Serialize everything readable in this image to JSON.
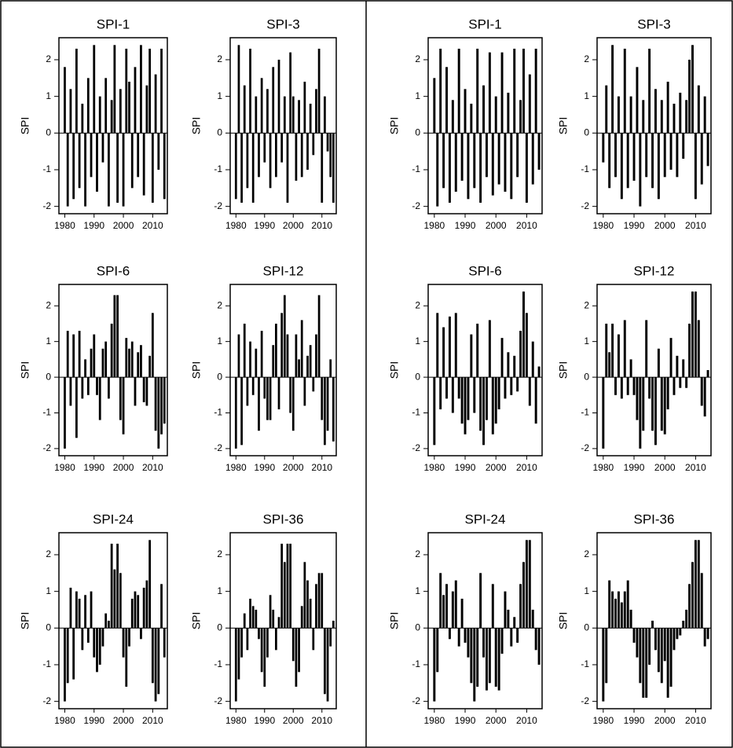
{
  "chart_data": [
    {
      "type": "bar",
      "title": "SPI-1",
      "ylabel": "SPI",
      "color": "#000000",
      "x": [
        1980,
        1981,
        1982,
        1983,
        1984,
        1985,
        1986,
        1987,
        1988,
        1989,
        1990,
        1991,
        1992,
        1993,
        1994,
        1995,
        1996,
        1997,
        1998,
        1999,
        2000,
        2001,
        2002,
        2003,
        2004,
        2005,
        2006,
        2007,
        2008,
        2009,
        2010,
        2011,
        2012,
        2013,
        2014
      ],
      "values": [
        1.8,
        -2,
        1.2,
        -1.8,
        2.3,
        -1.5,
        0.8,
        -2,
        1.5,
        -1.2,
        2.4,
        -1.6,
        1,
        -0.8,
        1.5,
        -2,
        0.9,
        2.4,
        -1.9,
        1.2,
        -2,
        2.3,
        1.4,
        -1.5,
        1.8,
        -1.2,
        2.4,
        -1.7,
        1.3,
        2.3,
        -1.9,
        1.6,
        -1,
        2.3,
        -1.8
      ],
      "xlim": [
        1978,
        2015
      ],
      "xticks": [
        1980,
        1990,
        2000,
        2010
      ],
      "ylim": [
        -2.2,
        2.6
      ],
      "yticks": [
        -2,
        -1,
        0,
        1,
        2
      ]
    },
    {
      "type": "bar",
      "title": "SPI-3",
      "ylabel": "SPI",
      "color": "#000000",
      "x": [
        1980,
        1981,
        1982,
        1983,
        1984,
        1985,
        1986,
        1987,
        1988,
        1989,
        1990,
        1991,
        1992,
        1993,
        1994,
        1995,
        1996,
        1997,
        1998,
        1999,
        2000,
        2001,
        2002,
        2003,
        2004,
        2005,
        2006,
        2007,
        2008,
        2009,
        2010,
        2011,
        2012,
        2013,
        2014
      ],
      "values": [
        -1.8,
        2.4,
        -1.9,
        1.3,
        -1.5,
        2.3,
        -1.9,
        1.0,
        -1.2,
        1.5,
        -0.8,
        1.2,
        -1.5,
        1.8,
        -1.2,
        2.0,
        -0.8,
        1.0,
        -1.9,
        2.2,
        1.0,
        -1.3,
        0.9,
        -1.2,
        1.4,
        -1.0,
        0.8,
        -0.6,
        1.2,
        2.3,
        -1.9,
        1.0,
        -0.5,
        -1.2,
        -1.9
      ],
      "xlim": [
        1978,
        2015
      ],
      "xticks": [
        1980,
        1990,
        2000,
        2010
      ],
      "ylim": [
        -2.2,
        2.6
      ],
      "yticks": [
        -2,
        -1,
        0,
        1,
        2
      ]
    },
    {
      "type": "bar",
      "title": "SPI-6",
      "ylabel": "SPI",
      "color": "#000000",
      "x": [
        1980,
        1981,
        1982,
        1983,
        1984,
        1985,
        1986,
        1987,
        1988,
        1989,
        1990,
        1991,
        1992,
        1993,
        1994,
        1995,
        1996,
        1997,
        1998,
        1999,
        2000,
        2001,
        2002,
        2003,
        2004,
        2005,
        2006,
        2007,
        2008,
        2009,
        2010,
        2011,
        2012,
        2013,
        2014
      ],
      "values": [
        -2,
        1.3,
        -0.8,
        1.2,
        -1.7,
        1.3,
        -0.6,
        0.5,
        -0.5,
        0.8,
        1.2,
        -0.5,
        -1.2,
        0.8,
        1.0,
        -0.6,
        1.5,
        2.3,
        2.3,
        -1.2,
        -1.6,
        1.1,
        0.8,
        1.0,
        -0.8,
        0.7,
        0.9,
        -0.7,
        -0.8,
        0.6,
        1.8,
        -1.5,
        -2,
        -1.6,
        -1.3
      ],
      "xlim": [
        1978,
        2015
      ],
      "xticks": [
        1980,
        1990,
        2000,
        2010
      ],
      "ylim": [
        -2.2,
        2.6
      ],
      "yticks": [
        -2,
        -1,
        0,
        1,
        2
      ]
    },
    {
      "type": "bar",
      "title": "SPI-12",
      "ylabel": "SPI",
      "color": "#000000",
      "x": [
        1980,
        1981,
        1982,
        1983,
        1984,
        1985,
        1986,
        1987,
        1988,
        1989,
        1990,
        1991,
        1992,
        1993,
        1994,
        1995,
        1996,
        1997,
        1998,
        1999,
        2000,
        2001,
        2002,
        2003,
        2004,
        2005,
        2006,
        2007,
        2008,
        2009,
        2010,
        2011,
        2012,
        2013,
        2014
      ],
      "values": [
        -2,
        1.2,
        -1.9,
        1.5,
        -0.8,
        1.0,
        -0.5,
        0.8,
        -1.5,
        1.3,
        -0.6,
        -1.2,
        -1.2,
        0.9,
        1.5,
        -0.9,
        1.8,
        2.3,
        1.2,
        -1.0,
        -1.5,
        1.2,
        0.5,
        1.6,
        -0.8,
        0.6,
        0.9,
        -0.4,
        1.2,
        2.3,
        -1.2,
        -1.9,
        -1.5,
        0.5,
        -1.8
      ],
      "xlim": [
        1978,
        2015
      ],
      "xticks": [
        1980,
        1990,
        2000,
        2010
      ],
      "ylim": [
        -2.2,
        2.6
      ],
      "yticks": [
        -2,
        -1,
        0,
        1,
        2
      ]
    },
    {
      "type": "bar",
      "title": "SPI-24",
      "ylabel": "SPI",
      "color": "#000000",
      "x": [
        1980,
        1981,
        1982,
        1983,
        1984,
        1985,
        1986,
        1987,
        1988,
        1989,
        1990,
        1991,
        1992,
        1993,
        1994,
        1995,
        1996,
        1997,
        1998,
        1999,
        2000,
        2001,
        2002,
        2003,
        2004,
        2005,
        2006,
        2007,
        2008,
        2009,
        2010,
        2011,
        2012,
        2013,
        2014
      ],
      "values": [
        -2,
        -1.5,
        1.1,
        -1.4,
        1.0,
        0.8,
        -0.6,
        0.9,
        -0.4,
        1.0,
        -0.8,
        -1.2,
        -1.0,
        -0.5,
        0.4,
        0.2,
        2.3,
        1.6,
        2.3,
        1.5,
        -0.8,
        -1.6,
        -0.5,
        0.8,
        1.0,
        0.9,
        -0.3,
        1.1,
        1.3,
        2.4,
        -1.5,
        -2,
        -1.8,
        1.2,
        -0.8
      ],
      "xlim": [
        1978,
        2015
      ],
      "xticks": [
        1980,
        1990,
        2000,
        2010
      ],
      "ylim": [
        -2.2,
        2.6
      ],
      "yticks": [
        -2,
        -1,
        0,
        1,
        2
      ]
    },
    {
      "type": "bar",
      "title": "SPI-36",
      "ylabel": "SPI",
      "color": "#000000",
      "x": [
        1980,
        1981,
        1982,
        1983,
        1984,
        1985,
        1986,
        1987,
        1988,
        1989,
        1990,
        1991,
        1992,
        1993,
        1994,
        1995,
        1996,
        1997,
        1998,
        1999,
        2000,
        2001,
        2002,
        2003,
        2004,
        2005,
        2006,
        2007,
        2008,
        2009,
        2010,
        2011,
        2012,
        2013,
        2014
      ],
      "values": [
        -2,
        -1.4,
        -0.8,
        0.4,
        -0.6,
        0.8,
        0.6,
        0.5,
        -0.3,
        -1.2,
        -1.6,
        -0.8,
        0.9,
        0.5,
        -0.6,
        0.3,
        2.3,
        1.8,
        2.3,
        2.3,
        -0.9,
        -1.6,
        -1.2,
        0.6,
        1.8,
        1.3,
        0.8,
        -0.6,
        1.2,
        1.5,
        1.5,
        -1.8,
        -2,
        -0.5,
        0.2
      ],
      "xlim": [
        1978,
        2015
      ],
      "xticks": [
        1980,
        1990,
        2000,
        2010
      ],
      "ylim": [
        -2.2,
        2.6
      ],
      "yticks": [
        -2,
        -1,
        0,
        1,
        2
      ]
    },
    {
      "type": "bar",
      "title": "SPI-1",
      "ylabel": "SPI",
      "color": "#000000",
      "x": [
        1980,
        1981,
        1982,
        1983,
        1984,
        1985,
        1986,
        1987,
        1988,
        1989,
        1990,
        1991,
        1992,
        1993,
        1994,
        1995,
        1996,
        1997,
        1998,
        1999,
        2000,
        2001,
        2002,
        2003,
        2004,
        2005,
        2006,
        2007,
        2008,
        2009,
        2010,
        2011,
        2012,
        2013,
        2014
      ],
      "values": [
        1.5,
        -2,
        2.3,
        -1.5,
        1.8,
        -1.9,
        0.9,
        -1.6,
        2.3,
        -1.3,
        1.2,
        -1.8,
        0.8,
        -1.5,
        2.3,
        -1.9,
        1.3,
        -1.2,
        2.2,
        -1.7,
        1.0,
        -1.4,
        2.2,
        -1.6,
        1.1,
        -1.8,
        2.3,
        -1.2,
        0.9,
        2.3,
        -1.9,
        1.6,
        -1.4,
        2.3,
        -1.0
      ],
      "xlim": [
        1978,
        2015
      ],
      "xticks": [
        1980,
        1990,
        2000,
        2010
      ],
      "ylim": [
        -2.2,
        2.6
      ],
      "yticks": [
        -2,
        -1,
        0,
        1,
        2
      ]
    },
    {
      "type": "bar",
      "title": "SPI-3",
      "ylabel": "SPI",
      "color": "#000000",
      "x": [
        1980,
        1981,
        1982,
        1983,
        1984,
        1985,
        1986,
        1987,
        1988,
        1989,
        1990,
        1991,
        1992,
        1993,
        1994,
        1995,
        1996,
        1997,
        1998,
        1999,
        2000,
        2001,
        2002,
        2003,
        2004,
        2005,
        2006,
        2007,
        2008,
        2009,
        2010,
        2011,
        2012,
        2013,
        2014
      ],
      "values": [
        -0.8,
        1.3,
        -1.5,
        2.4,
        -1.2,
        1.0,
        -1.8,
        2.3,
        -1.5,
        1.0,
        -1.3,
        1.8,
        -2,
        0.9,
        -1.2,
        2.3,
        -1.5,
        1.2,
        -1.8,
        0.9,
        -1.2,
        1.4,
        -1.0,
        0.8,
        -1.2,
        1.1,
        -0.7,
        0.9,
        2.0,
        2.4,
        -1.8,
        1.3,
        -1.4,
        1.0,
        -0.9
      ],
      "xlim": [
        1978,
        2015
      ],
      "xticks": [
        1980,
        1990,
        2000,
        2010
      ],
      "ylim": [
        -2.2,
        2.6
      ],
      "yticks": [
        -2,
        -1,
        0,
        1,
        2
      ]
    },
    {
      "type": "bar",
      "title": "SPI-6",
      "ylabel": "SPI",
      "color": "#000000",
      "x": [
        1980,
        1981,
        1982,
        1983,
        1984,
        1985,
        1986,
        1987,
        1988,
        1989,
        1990,
        1991,
        1992,
        1993,
        1994,
        1995,
        1996,
        1997,
        1998,
        1999,
        2000,
        2001,
        2002,
        2003,
        2004,
        2005,
        2006,
        2007,
        2008,
        2009,
        2010,
        2011,
        2012,
        2013,
        2014
      ],
      "values": [
        -1.9,
        1.8,
        -0.9,
        1.4,
        -0.6,
        1.7,
        -1.0,
        1.8,
        -0.6,
        -1.3,
        -1.6,
        -1.2,
        1.2,
        -1.0,
        1.5,
        -1.5,
        -1.9,
        -1.2,
        1.6,
        -1.6,
        -1.3,
        -0.9,
        1.1,
        -0.6,
        0.7,
        -0.5,
        0.6,
        -0.4,
        1.3,
        2.4,
        1.8,
        -0.8,
        1.0,
        -1.3,
        0.3
      ],
      "xlim": [
        1978,
        2015
      ],
      "xticks": [
        1980,
        1990,
        2000,
        2010
      ],
      "ylim": [
        -2.2,
        2.6
      ],
      "yticks": [
        -2,
        -1,
        0,
        1,
        2
      ]
    },
    {
      "type": "bar",
      "title": "SPI-12",
      "ylabel": "SPI",
      "color": "#000000",
      "x": [
        1980,
        1981,
        1982,
        1983,
        1984,
        1985,
        1986,
        1987,
        1988,
        1989,
        1990,
        1991,
        1992,
        1993,
        1994,
        1995,
        1996,
        1997,
        1998,
        1999,
        2000,
        2001,
        2002,
        2003,
        2004,
        2005,
        2006,
        2007,
        2008,
        2009,
        2010,
        2011,
        2012,
        2013,
        2014
      ],
      "values": [
        -2,
        1.5,
        0.7,
        1.5,
        -0.5,
        1.2,
        -0.6,
        1.6,
        -0.5,
        0.5,
        -0.5,
        -1.2,
        -2.0,
        -1.5,
        1.6,
        -0.6,
        -1.5,
        -1.9,
        0.8,
        -1.5,
        -1.6,
        -0.9,
        1.1,
        -0.5,
        0.6,
        -0.3,
        0.5,
        -0.3,
        1.5,
        2.4,
        2.4,
        1.6,
        -0.8,
        -1.1,
        0.2
      ],
      "xlim": [
        1978,
        2015
      ],
      "xticks": [
        1980,
        1990,
        2000,
        2010
      ],
      "ylim": [
        -2.2,
        2.6
      ],
      "yticks": [
        -2,
        -1,
        0,
        1,
        2
      ]
    },
    {
      "type": "bar",
      "title": "SPI-24",
      "ylabel": "SPI",
      "color": "#000000",
      "x": [
        1980,
        1981,
        1982,
        1983,
        1984,
        1985,
        1986,
        1987,
        1988,
        1989,
        1990,
        1991,
        1992,
        1993,
        1994,
        1995,
        1996,
        1997,
        1998,
        1999,
        2000,
        2001,
        2002,
        2003,
        2004,
        2005,
        2006,
        2007,
        2008,
        2009,
        2010,
        2011,
        2012,
        2013,
        2014
      ],
      "values": [
        -2,
        -1.2,
        1.5,
        0.9,
        1.2,
        -0.3,
        1.0,
        1.3,
        -0.5,
        0.8,
        -0.4,
        -0.8,
        -1.5,
        -2,
        -1.6,
        1.5,
        -0.8,
        -1.7,
        -1.5,
        1.2,
        -1.6,
        -1.7,
        -0.7,
        1.0,
        0.5,
        -0.5,
        0.3,
        -0.4,
        1.2,
        1.8,
        2.4,
        2.4,
        0.5,
        -0.6,
        -1.0
      ],
      "xlim": [
        1978,
        2015
      ],
      "xticks": [
        1980,
        1990,
        2000,
        2010
      ],
      "ylim": [
        -2.2,
        2.6
      ],
      "yticks": [
        -2,
        -1,
        0,
        1,
        2
      ]
    },
    {
      "type": "bar",
      "title": "SPI-36",
      "ylabel": "SPI",
      "color": "#000000",
      "x": [
        1980,
        1981,
        1982,
        1983,
        1984,
        1985,
        1986,
        1987,
        1988,
        1989,
        1990,
        1991,
        1992,
        1993,
        1994,
        1995,
        1996,
        1997,
        1998,
        1999,
        2000,
        2001,
        2002,
        2003,
        2004,
        2005,
        2006,
        2007,
        2008,
        2009,
        2010,
        2011,
        2012,
        2013,
        2014
      ],
      "values": [
        -2,
        -1.5,
        1.3,
        1.0,
        0.8,
        1.0,
        0.7,
        1.0,
        1.3,
        0.5,
        -0.4,
        -0.8,
        -1.5,
        -1.9,
        -1.9,
        -1.0,
        0.2,
        -0.6,
        -1.2,
        -1.5,
        -0.9,
        -1.9,
        -1.6,
        -0.6,
        -0.3,
        -0.2,
        0.2,
        0.5,
        1.2,
        1.8,
        2.4,
        2.4,
        1.5,
        -0.5,
        -0.3
      ],
      "xlim": [
        1978,
        2015
      ],
      "xticks": [
        1980,
        1990,
        2000,
        2010
      ],
      "ylim": [
        -2.2,
        2.6
      ],
      "yticks": [
        -2,
        -1,
        0,
        1,
        2
      ]
    }
  ]
}
